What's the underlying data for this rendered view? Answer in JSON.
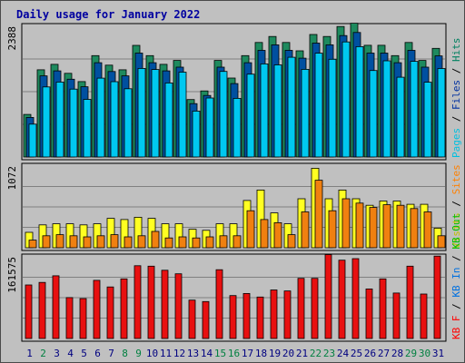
{
  "chart_data": {
    "type": "bar",
    "title": "Daily usage for January 2022",
    "x": [
      "1",
      "2",
      "3",
      "4",
      "5",
      "6",
      "7",
      "8",
      "9",
      "10",
      "11",
      "12",
      "13",
      "14",
      "15",
      "16",
      "17",
      "18",
      "19",
      "20",
      "21",
      "22",
      "23",
      "24",
      "25",
      "26",
      "27",
      "28",
      "29",
      "30",
      "31"
    ],
    "weekend_days": [
      "2",
      "8",
      "9",
      "15",
      "16",
      "22",
      "23",
      "29",
      "30"
    ],
    "panels": [
      {
        "id": "top",
        "ymax_label": "2388",
        "ymax": 2388,
        "legend_order": [
          {
            "text": "Pages",
            "color": "#00c0e0"
          },
          {
            "text": " / ",
            "color": "#000000"
          },
          {
            "text": "Files",
            "color": "#0030a0"
          },
          {
            "text": " / ",
            "color": "#000000"
          },
          {
            "text": "Hits",
            "color": "#008060"
          }
        ],
        "series": [
          {
            "name": "Hits",
            "color": "#1e8a5e",
            "values": [
              777,
              1593,
              1693,
              1529,
              1378,
              1852,
              1679,
              1593,
              2039,
              1852,
              1693,
              1765,
              1049,
              1208,
              1765,
              1443,
              1852,
              2093,
              2202,
              2093,
              1941,
              2238,
              2202,
              2385,
              2445,
              2041,
              2041,
              1852,
              2093,
              1765,
              1985
            ]
          },
          {
            "name": "Files",
            "color": "#0050a0",
            "values": [
              723,
              1483,
              1574,
              1422,
              1283,
              1723,
              1562,
              1483,
              1899,
              1723,
              1574,
              1642,
              975,
              1124,
              1642,
              1342,
              1723,
              1948,
              2049,
              1948,
              1806,
              2082,
              2049,
              2219,
              2275,
              1899,
              1899,
              1723,
              1948,
              1642,
              1847
            ]
          },
          {
            "name": "Pages",
            "color": "#00c8f0",
            "values": [
              600,
              1280,
              1370,
              1241,
              1053,
              1441,
              1377,
              1247,
              1618,
              1599,
              1353,
              1551,
              839,
              1078,
              1563,
              1071,
              1514,
              1701,
              1683,
              1822,
              1602,
              1897,
              1786,
              2103,
              2016,
              1581,
              1758,
              1457,
              1748,
              1366,
              1617
            ]
          }
        ]
      },
      {
        "id": "middle",
        "ymax_label": "1072",
        "ymax": 1072,
        "legend_order": [
          {
            "text": "Visits",
            "color": "#c0c000"
          },
          {
            "text": " / ",
            "color": "#000000"
          },
          {
            "text": "Sites",
            "color": "#ff8000"
          }
        ],
        "series": [
          {
            "name": "Visits",
            "color": "#ffff22",
            "values": [
              203,
              300,
              314,
              314,
              300,
              314,
              386,
              371,
              400,
              386,
              314,
              314,
              243,
              229,
              314,
              314,
              621,
              757,
              457,
              314,
              643,
              1043,
              643,
              757,
              643,
              557,
              614,
              614,
              571,
              571,
              257
            ]
          },
          {
            "name": "Sites",
            "color": "#f08010",
            "values": [
              100,
              157,
              171,
              157,
              143,
              157,
              171,
              143,
              157,
              214,
              129,
              143,
              129,
              143,
              157,
              157,
              486,
              371,
              329,
              171,
              471,
              886,
              486,
              643,
              586,
              529,
              564,
              557,
              514,
              471,
              157
            ]
          }
        ]
      },
      {
        "id": "bottom",
        "ymax_label": "161575",
        "ymax": 161575,
        "legend_order": [
          {
            "text": "KB F",
            "color": "#ff0000"
          },
          {
            "text": " / ",
            "color": "#000000"
          },
          {
            "text": "KB In",
            "color": "#0070e0"
          },
          {
            "text": " / ",
            "color": "#000000"
          },
          {
            "text": "KB Out",
            "color": "#00c000"
          }
        ],
        "series": [
          {
            "name": "KB F",
            "color": "#e81010",
            "values": [
              106000,
              111000,
              124000,
              81000,
              79000,
              115000,
              102000,
              118000,
              144000,
              143000,
              135000,
              128000,
              76000,
              73000,
              136000,
              85000,
              89000,
              82000,
              96000,
              94000,
              119000,
              119000,
              166000,
              155000,
              158000,
              98000,
              118000,
              90000,
              143000,
              88000,
              163000
            ]
          }
        ]
      }
    ]
  }
}
